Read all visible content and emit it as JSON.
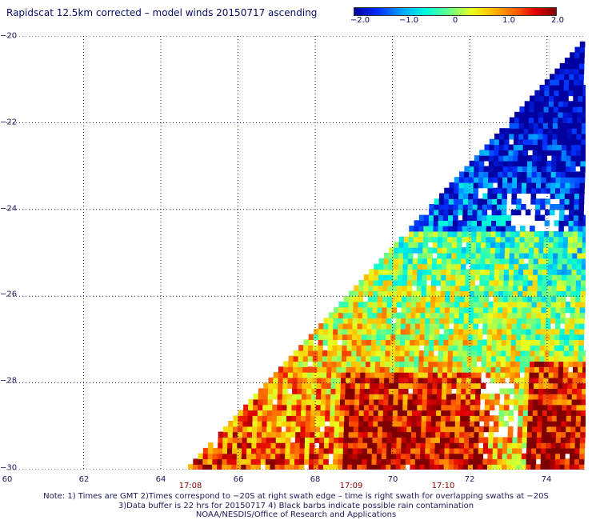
{
  "title": "Rapidscat 12.5km corrected – model winds 20150717 ascending",
  "colorbar": {
    "labels": [
      "−2.0",
      "−1.0",
      "0",
      "1.0",
      "2.0"
    ],
    "range": [
      -2.0,
      2.0
    ]
  },
  "map": {
    "lon_range": [
      60,
      75
    ],
    "lat_range": [
      -30,
      -20
    ],
    "lon_ticks": [
      "60",
      "62",
      "64",
      "66",
      "68",
      "70",
      "72",
      "74"
    ],
    "lat_ticks": [
      "−20",
      "−22",
      "−24",
      "−26",
      "−28",
      "−30"
    ],
    "lat_grid_values": [
      -20,
      -22,
      -24,
      -26,
      -28,
      -30
    ],
    "lon_grid_values": [
      62,
      64,
      66,
      68,
      70,
      72,
      74
    ],
    "time_labels": [
      {
        "label": "17:08",
        "lon": 64.7
      },
      {
        "label": "17:09",
        "lon": 68.9
      },
      {
        "label": "17:10",
        "lon": 71.3
      }
    ],
    "swath_edge": [
      [
        64.7,
        -30
      ],
      [
        74.9,
        -20.2
      ]
    ]
  },
  "notes": [
    "Note: 1) Times are GMT 2)Times correspond to −20S at right swath edge – time is right swath for overlapping swaths at −20S",
    "3)Data buffer is 22 hrs for 20150717 4) Black barbs indicate possible rain contamination",
    "NOAA/NESDIS/Office of Research and Applications"
  ]
}
